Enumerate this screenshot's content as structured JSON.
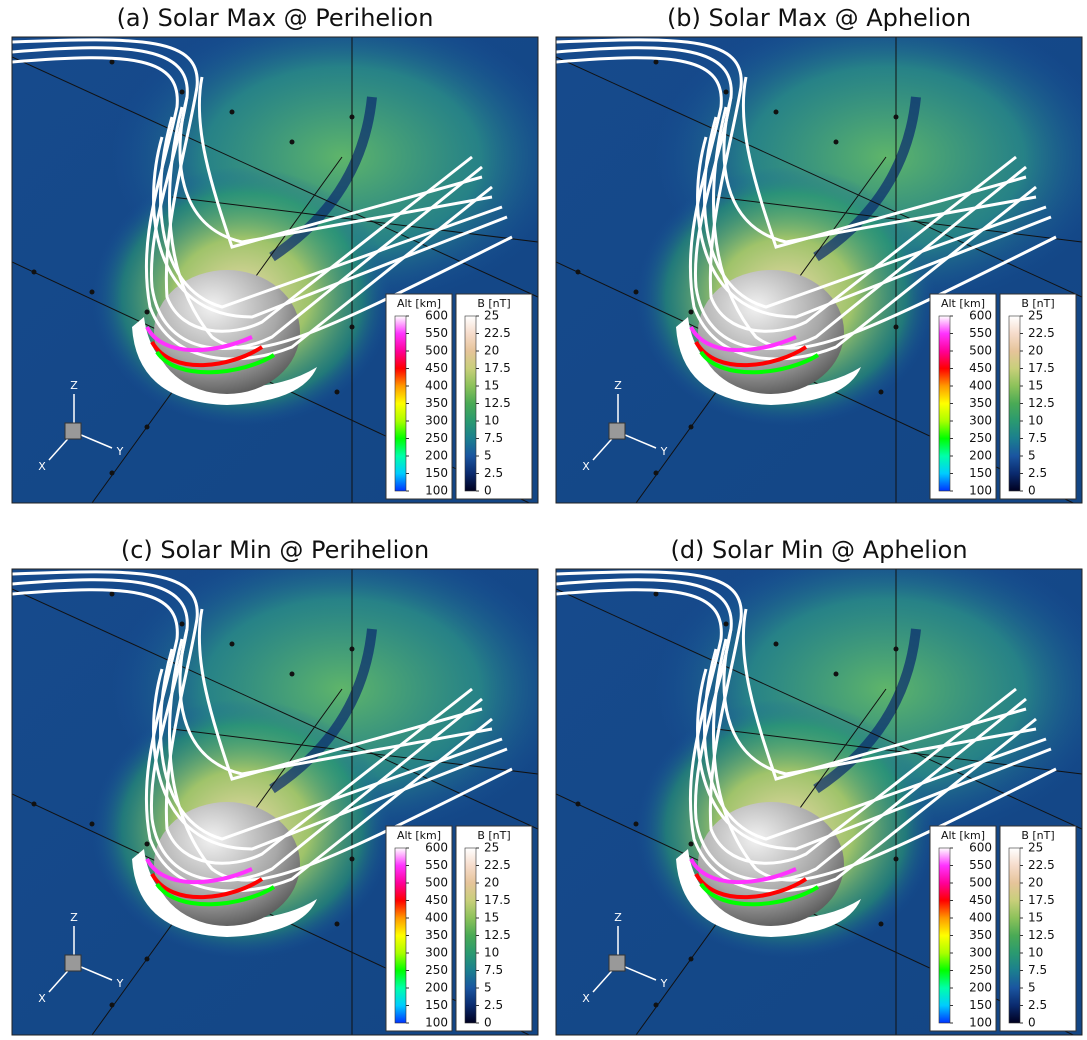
{
  "panels": [
    {
      "title": "(a) Solar Max @ Perihelion"
    },
    {
      "title": "(b) Solar Max @ Aphelion"
    },
    {
      "title": "(c) Solar Min @ Perihelion"
    },
    {
      "title": "(d) Solar Min @ Aphelion"
    }
  ],
  "colorbars": [
    {
      "label": "Alt [km]",
      "ticks": [
        600,
        550,
        500,
        450,
        400,
        350,
        300,
        250,
        200,
        150,
        100
      ],
      "colors": [
        "#0033ff",
        "#00ccff",
        "#00ffaa",
        "#00ff00",
        "#aaff00",
        "#ffff00",
        "#ff9900",
        "#ff0000",
        "#ff0099",
        "#ff33ff",
        "#ffffff"
      ]
    },
    {
      "label": "B [nT]",
      "ticks": [
        25,
        22.5,
        20,
        17.5,
        15,
        12.5,
        10,
        7.5,
        5,
        2.5,
        0
      ],
      "colors": [
        "#000020",
        "#0a2a6e",
        "#1a55a0",
        "#1b7f8f",
        "#2a9a70",
        "#4aaa55",
        "#8cc25a",
        "#c8cf7a",
        "#e6c49a",
        "#f6dccb",
        "#ffffff"
      ]
    }
  ],
  "axis_labels": [
    "Z",
    "Y",
    "X"
  ]
}
